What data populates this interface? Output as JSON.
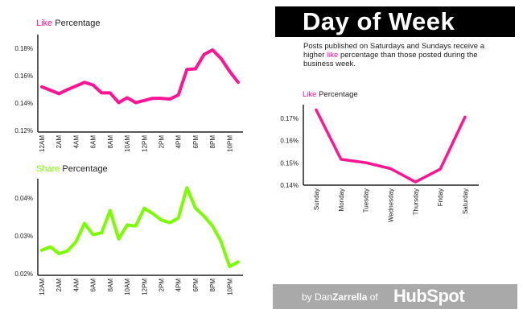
{
  "colors": {
    "like": "#ff1493",
    "share": "#7cfc00",
    "axis": "#222222"
  },
  "header": {
    "title": "Day of Week"
  },
  "description": {
    "part1": "Posts published on Saturdays and Sundays receive a higher ",
    "highlight": "like",
    "part2": " percentage than those posted during the business week."
  },
  "footer": {
    "by": "by Dan",
    "author_bold": "Zarrella",
    "of": " of ",
    "logo": "HubSpot"
  },
  "chart_data": [
    {
      "id": "hourly-like",
      "type": "line",
      "title_highlight": "Like",
      "title_rest": " Percentage",
      "ylabel": "Like Percentage",
      "ylim": [
        0.12,
        0.18
      ],
      "yticks": [
        0.12,
        0.14,
        0.16,
        0.18
      ],
      "ytick_labels": [
        "0.12%",
        "0.14%",
        "0.16%",
        "0.18%"
      ],
      "x": [
        "12AM",
        "1AM",
        "2AM",
        "3AM",
        "4AM",
        "5AM",
        "6AM",
        "7AM",
        "8AM",
        "9AM",
        "10AM",
        "11AM",
        "12PM",
        "1PM",
        "2PM",
        "3PM",
        "4PM",
        "5PM",
        "6PM",
        "7PM",
        "8PM",
        "9PM",
        "10PM",
        "11PM"
      ],
      "xtick_labels": [
        "12AM",
        "",
        "2AM",
        "",
        "4AM",
        "",
        "6AM",
        "",
        "8AM",
        "",
        "10AM",
        "",
        "12PM",
        "",
        "2PM",
        "",
        "4PM",
        "",
        "6PM",
        "",
        "8PM",
        "",
        "10PM",
        ""
      ],
      "values": [
        0.1518,
        0.1494,
        0.1468,
        0.1498,
        0.1524,
        0.1551,
        0.1532,
        0.1474,
        0.1474,
        0.1403,
        0.1439,
        0.1403,
        0.1419,
        0.1435,
        0.1435,
        0.1429,
        0.1459,
        0.1646,
        0.165,
        0.1755,
        0.1788,
        0.1725,
        0.1632,
        0.1551
      ],
      "color": "#ff1493"
    },
    {
      "id": "hourly-share",
      "type": "line",
      "title_highlight": "Share",
      "title_rest": " Percentage",
      "ylabel": "Share Percentage",
      "ylim": [
        0.02,
        0.04
      ],
      "yticks": [
        0.02,
        0.03,
        0.04
      ],
      "ytick_labels": [
        "0.02%",
        "0.03%",
        "0.04%"
      ],
      "x": [
        "12AM",
        "1AM",
        "2AM",
        "3AM",
        "4AM",
        "5AM",
        "6AM",
        "7AM",
        "8AM",
        "9AM",
        "10AM",
        "11AM",
        "12PM",
        "1PM",
        "2PM",
        "3PM",
        "4PM",
        "5PM",
        "6PM",
        "7PM",
        "8PM",
        "9PM",
        "10PM",
        "11PM"
      ],
      "xtick_labels": [
        "12AM",
        "",
        "2AM",
        "",
        "4AM",
        "",
        "6AM",
        "",
        "8AM",
        "",
        "10AM",
        "",
        "12PM",
        "",
        "2PM",
        "",
        "4PM",
        "",
        "6PM",
        "",
        "8PM",
        "",
        "10PM",
        ""
      ],
      "values": [
        0.0262,
        0.0271,
        0.0253,
        0.026,
        0.0284,
        0.0333,
        0.0303,
        0.0308,
        0.0367,
        0.0292,
        0.0329,
        0.0326,
        0.0373,
        0.0359,
        0.0342,
        0.0335,
        0.0347,
        0.0427,
        0.0373,
        0.0352,
        0.0326,
        0.0285,
        0.0219,
        0.0231
      ],
      "color": "#7cfc00"
    },
    {
      "id": "weekday-like",
      "type": "line",
      "title_highlight": "Like",
      "title_rest": " Percentage",
      "ylabel": "Like Percentage",
      "ylim": [
        0.14,
        0.17
      ],
      "yticks": [
        0.14,
        0.15,
        0.16,
        0.17
      ],
      "ytick_labels": [
        "0.14%",
        "0.15%",
        "0.16%",
        "0.17%"
      ],
      "x": [
        "Sunday",
        "Monday",
        "Tuesday",
        "Wednesday",
        "Thursday",
        "Friday",
        "Saturday"
      ],
      "xtick_labels": [
        "Sunday",
        "Monday",
        "Tuesday",
        "Wednesday",
        "Thursday",
        "Friday",
        "Saturday"
      ],
      "values": [
        0.1738,
        0.1516,
        0.1501,
        0.1474,
        0.1414,
        0.1472,
        0.1706
      ],
      "color": "#ff1493"
    }
  ]
}
